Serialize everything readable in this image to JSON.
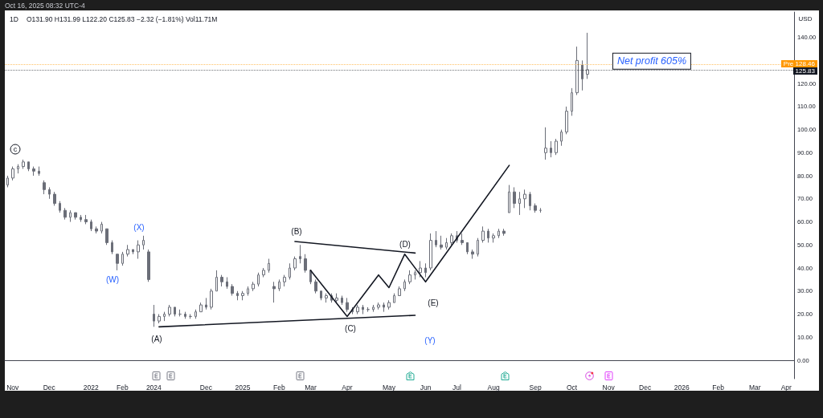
{
  "chart_data": {
    "type": "candlestick",
    "title": "1D",
    "subtitle": "O131.90 H131.99 L122.20 C125.83 −2.32 (−1.81%) Vol11.71M",
    "ylabel": "USD",
    "color": "#6b6e78",
    "categories": [
      null,
      "Nov",
      null,
      null,
      null,
      null,
      null,
      null,
      "Dec",
      null,
      null,
      null,
      null,
      null,
      null,
      null,
      "2022",
      null,
      null,
      null,
      null,
      null,
      "Feb",
      null,
      null,
      null,
      null,
      null,
      "2024",
      null,
      null,
      null,
      null,
      null,
      null,
      null,
      null,
      null,
      "Dec",
      null,
      null,
      null,
      null,
      null,
      null,
      "2025",
      null,
      null,
      null,
      null,
      null,
      null,
      "Feb",
      null,
      null,
      null,
      null,
      null,
      "Mar",
      null,
      null,
      null,
      null,
      null,
      null,
      "Apr",
      null,
      null,
      null,
      null,
      null,
      null,
      null,
      "May",
      null,
      null,
      null,
      null,
      null,
      null,
      "Jun",
      null,
      null,
      null,
      null,
      null,
      "Jul",
      null,
      null,
      null,
      null,
      null,
      null,
      "Aug",
      null,
      null,
      null,
      null,
      null,
      null,
      null,
      "Sep",
      null,
      null,
      null,
      null,
      null,
      null,
      "Oct",
      null,
      null,
      null,
      null,
      null,
      null,
      "Nov",
      null,
      null,
      null,
      null,
      null,
      null,
      "Dec",
      null,
      null,
      null,
      null,
      null,
      null,
      "2026",
      null,
      null,
      null,
      null,
      null,
      null,
      "Feb",
      null,
      null,
      null,
      null,
      null,
      null,
      "Mar",
      null,
      null,
      null,
      null,
      null,
      "Apr",
      null
    ],
    "ohlc": [
      [
        76,
        80,
        75,
        79
      ],
      [
        79,
        84,
        78,
        83
      ],
      [
        83,
        85,
        81,
        84
      ],
      [
        84,
        87,
        83,
        86
      ],
      [
        86,
        86,
        82,
        83
      ],
      [
        83,
        84,
        80,
        82
      ],
      [
        82,
        84,
        80,
        81
      ],
      [
        77,
        78,
        72,
        74
      ],
      [
        74,
        75,
        70,
        72
      ],
      [
        72,
        73,
        67,
        68
      ],
      [
        68,
        69,
        64,
        65
      ],
      [
        65,
        66,
        61,
        62
      ],
      [
        62,
        65,
        60,
        64
      ],
      [
        64,
        64,
        61,
        62
      ],
      [
        62,
        63,
        60,
        61
      ],
      [
        61,
        63,
        59,
        60
      ],
      [
        60,
        61,
        56,
        57
      ],
      [
        57,
        58,
        55,
        56
      ],
      [
        56,
        60,
        55,
        59
      ],
      [
        57,
        57,
        50,
        51
      ],
      [
        51,
        52,
        46,
        47
      ],
      [
        46,
        46,
        39,
        42
      ],
      [
        42,
        47,
        41,
        46
      ],
      [
        46,
        50,
        45,
        48
      ],
      [
        48,
        48,
        46,
        47
      ],
      [
        47,
        52,
        44,
        50
      ],
      [
        50,
        54,
        48,
        52
      ],
      [
        47,
        48,
        34,
        35
      ],
      [
        20,
        24,
        14.5,
        17
      ],
      [
        17,
        20,
        16,
        19
      ],
      [
        19,
        21,
        17,
        20
      ],
      [
        20,
        24,
        19,
        23
      ],
      [
        23,
        23,
        19,
        20
      ],
      [
        20,
        22,
        19,
        20
      ],
      [
        20,
        21,
        18,
        19
      ],
      [
        19,
        20,
        18,
        19
      ],
      [
        19,
        22,
        18,
        21
      ],
      [
        21,
        25,
        21,
        24
      ],
      [
        24,
        27,
        22,
        23
      ],
      [
        23,
        31,
        22,
        30
      ],
      [
        30,
        39,
        30,
        36
      ],
      [
        36,
        37,
        32,
        34
      ],
      [
        34,
        36,
        31,
        32
      ],
      [
        32,
        33,
        28,
        29
      ],
      [
        29,
        30,
        26,
        28
      ],
      [
        28,
        30,
        26,
        29
      ],
      [
        29,
        32,
        28,
        31
      ],
      [
        31,
        34,
        30,
        33
      ],
      [
        33,
        38,
        32,
        37
      ],
      [
        37,
        40,
        36,
        39
      ],
      [
        39,
        44,
        38,
        42
      ],
      [
        32,
        34,
        25,
        31
      ],
      [
        31,
        35,
        30,
        34
      ],
      [
        34,
        37,
        32,
        36
      ],
      [
        36,
        42,
        35,
        40
      ],
      [
        40,
        45,
        39,
        44
      ],
      [
        45,
        50,
        42,
        44
      ],
      [
        44,
        46,
        38,
        39
      ],
      [
        39,
        39,
        33,
        34
      ],
      [
        34,
        35,
        29,
        30
      ],
      [
        30,
        30,
        26,
        27
      ],
      [
        27,
        29,
        25,
        28
      ],
      [
        28,
        29,
        25,
        26
      ],
      [
        26,
        29,
        25,
        27
      ],
      [
        27,
        28,
        24,
        25
      ],
      [
        25,
        27,
        21,
        22
      ],
      [
        22,
        23,
        20,
        21
      ],
      [
        21,
        24,
        20,
        23
      ],
      [
        23,
        24,
        20,
        22
      ],
      [
        22,
        23,
        21,
        22
      ],
      [
        22,
        24,
        21,
        23
      ],
      [
        23,
        25,
        22,
        24
      ],
      [
        24,
        25,
        21,
        23
      ],
      [
        23,
        26,
        22,
        25
      ],
      [
        25,
        29,
        25,
        28
      ],
      [
        28,
        32,
        28,
        31
      ],
      [
        31,
        35,
        30,
        34
      ],
      [
        34,
        39,
        33,
        37
      ],
      [
        37,
        39,
        35,
        38
      ],
      [
        38,
        43,
        36,
        40
      ],
      [
        40,
        42,
        36,
        38
      ],
      [
        40,
        55,
        39,
        52
      ],
      [
        52,
        56,
        49,
        50
      ],
      [
        50,
        54,
        48,
        49
      ],
      [
        49,
        53,
        48,
        51
      ],
      [
        51,
        55,
        50,
        54
      ],
      [
        54,
        56,
        51,
        52
      ],
      [
        52,
        55,
        50,
        51
      ],
      [
        51,
        51,
        46,
        47
      ],
      [
        47,
        48,
        44,
        46
      ],
      [
        46,
        53,
        45,
        52
      ],
      [
        52,
        58,
        51,
        56
      ],
      [
        56,
        57,
        51,
        53
      ],
      [
        53,
        55,
        51,
        54
      ],
      [
        54,
        57,
        53,
        56
      ],
      [
        56,
        57,
        54,
        55
      ],
      [
        64,
        76,
        64,
        73
      ],
      [
        73,
        75,
        66,
        68
      ],
      [
        68,
        73,
        63,
        70
      ],
      [
        70,
        74,
        66,
        72
      ],
      [
        72,
        73,
        65,
        67
      ],
      [
        67,
        68,
        64,
        65
      ],
      [
        65,
        66,
        64,
        65
      ],
      [
        90,
        101,
        87,
        92
      ],
      [
        92,
        95,
        88,
        90
      ],
      [
        90,
        96,
        89,
        95
      ],
      [
        95,
        100,
        93,
        99
      ],
      [
        99,
        110,
        98,
        108
      ],
      [
        108,
        118,
        106,
        116
      ],
      [
        116,
        136,
        115,
        130
      ],
      [
        128,
        130,
        117,
        122
      ],
      [
        124,
        142,
        122,
        126
      ],
      null,
      null,
      null,
      null,
      null,
      null,
      null,
      null,
      null,
      null,
      null,
      null,
      null,
      null,
      null,
      null,
      null,
      null,
      null,
      null,
      null,
      null,
      null,
      null,
      null,
      null,
      null,
      null,
      null,
      null,
      null,
      null,
      null,
      null,
      null,
      null,
      null,
      null,
      null
    ],
    "series": [
      {
        "type": "line",
        "color": "#131722",
        "values": [
          null,
          null,
          null,
          null,
          null,
          null,
          null,
          null,
          null,
          null,
          null,
          null,
          null,
          null,
          null,
          null,
          null,
          null,
          null,
          null,
          null,
          null,
          null,
          null,
          null,
          null,
          null,
          null,
          null,
          14.5,
          null,
          null,
          null,
          null,
          null,
          null,
          null,
          null,
          null,
          null,
          null,
          null,
          null,
          null,
          null,
          null,
          null,
          null,
          null,
          null,
          null,
          null,
          null,
          null,
          null,
          null,
          null,
          null,
          null,
          null,
          null,
          null,
          null,
          null,
          null,
          null,
          null,
          null,
          null,
          null,
          null,
          null,
          null,
          null,
          null,
          null,
          null,
          null,
          19.5,
          null,
          null,
          null,
          null,
          null,
          null,
          null,
          null,
          null,
          null,
          null,
          null,
          null,
          null,
          null,
          null,
          null,
          null,
          null,
          null,
          null,
          null,
          null,
          null,
          null,
          null,
          null,
          null,
          null,
          null,
          null,
          null,
          null,
          null,
          null,
          null,
          null,
          null,
          null,
          null,
          null,
          null,
          null,
          null,
          null,
          null,
          null,
          null,
          null,
          null,
          null,
          null,
          null,
          null,
          null,
          null,
          null,
          null,
          null,
          null,
          null,
          null,
          null,
          null,
          null,
          null,
          null,
          null,
          null,
          null,
          null,
          null
        ]
      },
      {
        "type": "line",
        "color": "#131722",
        "values": [
          null,
          null,
          null,
          null,
          null,
          null,
          null,
          null,
          null,
          null,
          null,
          null,
          null,
          null,
          null,
          null,
          null,
          null,
          null,
          null,
          null,
          null,
          null,
          null,
          null,
          null,
          null,
          null,
          null,
          null,
          null,
          null,
          null,
          null,
          null,
          null,
          null,
          null,
          null,
          null,
          null,
          null,
          null,
          null,
          null,
          null,
          null,
          null,
          null,
          null,
          null,
          null,
          null,
          null,
          null,
          51.5,
          null,
          null,
          null,
          null,
          null,
          null,
          null,
          null,
          null,
          null,
          null,
          null,
          null,
          null,
          null,
          null,
          null,
          null,
          null,
          null,
          null,
          null,
          46.5,
          null,
          null,
          null,
          null,
          null,
          null,
          null,
          null,
          null,
          null,
          null,
          null,
          null,
          null,
          null,
          null,
          null,
          null,
          null,
          null,
          null,
          null,
          null,
          null,
          null,
          null,
          null,
          null,
          null,
          null,
          null,
          null,
          null,
          null,
          null,
          null,
          null,
          null,
          null,
          null,
          null,
          null,
          null,
          null,
          null,
          null,
          null,
          null,
          null,
          null,
          null,
          null,
          null,
          null,
          null,
          null,
          null,
          null,
          null,
          null,
          null,
          null,
          null,
          null,
          null,
          null,
          null,
          null,
          null,
          null,
          null,
          null
        ]
      },
      {
        "type": "line",
        "color": "#131722",
        "values": [
          null,
          null,
          null,
          null,
          null,
          null,
          null,
          null,
          null,
          null,
          null,
          null,
          null,
          null,
          null,
          null,
          null,
          null,
          null,
          null,
          null,
          null,
          null,
          null,
          null,
          null,
          null,
          null,
          null,
          null,
          null,
          null,
          null,
          null,
          null,
          null,
          null,
          null,
          null,
          null,
          null,
          null,
          null,
          null,
          null,
          null,
          null,
          null,
          null,
          null,
          null,
          null,
          null,
          null,
          null,
          null,
          null,
          null,
          39,
          null,
          null,
          null,
          null,
          null,
          null,
          19,
          null,
          null,
          null,
          null,
          null,
          37,
          null,
          31.5,
          null,
          null,
          46,
          null,
          null,
          null,
          34,
          null,
          null,
          null,
          null,
          null,
          null,
          null,
          null,
          null,
          null,
          null,
          null,
          null,
          null,
          null,
          84.5,
          null,
          null,
          null,
          null,
          null,
          null,
          null,
          null,
          null,
          null,
          null,
          null,
          null,
          null,
          null,
          null,
          null,
          null,
          null,
          null,
          null,
          null,
          null,
          null,
          null,
          null,
          null,
          null,
          null,
          null,
          null,
          null,
          null,
          null,
          null,
          null,
          null,
          null,
          null,
          null,
          null,
          null,
          null,
          null,
          null,
          null,
          null,
          null,
          null,
          null,
          null,
          null,
          null,
          null
        ]
      }
    ],
    "ylim": [
      -8,
      151
    ],
    "yticks": [
      {
        "value": 0,
        "label": "0.00"
      },
      {
        "value": 10,
        "label": "10.00"
      },
      {
        "value": 20,
        "label": "20.00"
      },
      {
        "value": 30,
        "label": "30.00"
      },
      {
        "value": 40,
        "label": "40.00"
      },
      {
        "value": 50,
        "label": "50.00"
      },
      {
        "value": 60,
        "label": "60.00"
      },
      {
        "value": 70,
        "label": "70.00"
      },
      {
        "value": 80,
        "label": "80.00"
      },
      {
        "value": 90,
        "label": "90.00"
      },
      {
        "value": 100,
        "label": "100.00"
      },
      {
        "value": 110,
        "label": "110.00"
      },
      {
        "value": 120,
        "label": "120.00"
      },
      {
        "value": 140,
        "label": "140.00"
      }
    ],
    "ref_lines": [
      {
        "axis": "y",
        "value": 128.46,
        "label": "Pre 128.46",
        "color": "#ff9800",
        "line_style": "dotted"
      },
      {
        "axis": "y",
        "value": 125.83,
        "label": "125.83",
        "color": "#131722",
        "line_style": "dotted"
      }
    ],
    "annotations": [
      "Oct 16, 2025 08:32 UTC-4",
      "c",
      "(W)",
      "(X)",
      "(A)",
      "(B)",
      "(C)",
      "(D)",
      "(E)",
      "(Y)",
      "Net profit 605%"
    ]
  }
}
